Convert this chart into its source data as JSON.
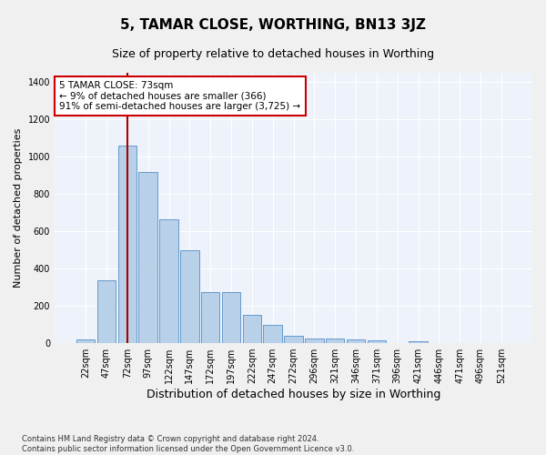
{
  "title": "5, TAMAR CLOSE, WORTHING, BN13 3JZ",
  "subtitle": "Size of property relative to detached houses in Worthing",
  "xlabel": "Distribution of detached houses by size in Worthing",
  "ylabel": "Number of detached properties",
  "categories": [
    "22sqm",
    "47sqm",
    "72sqm",
    "97sqm",
    "122sqm",
    "147sqm",
    "172sqm",
    "197sqm",
    "222sqm",
    "247sqm",
    "272sqm",
    "296sqm",
    "321sqm",
    "346sqm",
    "371sqm",
    "396sqm",
    "421sqm",
    "446sqm",
    "471sqm",
    "496sqm",
    "521sqm"
  ],
  "values": [
    22,
    335,
    1060,
    920,
    665,
    500,
    275,
    275,
    150,
    100,
    38,
    23,
    23,
    20,
    14,
    0,
    12,
    0,
    0,
    0,
    0
  ],
  "bar_color": "#b8d0e8",
  "bar_edge_color": "#6699cc",
  "vline_x": 2.0,
  "vline_color": "#aa0000",
  "annotation_text_line1": "5 TAMAR CLOSE: 73sqm",
  "annotation_text_line2": "← 9% of detached houses are smaller (366)",
  "annotation_text_line3": "91% of semi-detached houses are larger (3,725) →",
  "annotation_box_color": "#ffffff",
  "annotation_box_edge_color": "#cc0000",
  "footer": "Contains HM Land Registry data © Crown copyright and database right 2024.\nContains public sector information licensed under the Open Government Licence v3.0.",
  "ylim": [
    0,
    1450
  ],
  "bg_color": "#eef2fa",
  "grid_color": "#ffffff",
  "title_fontsize": 11,
  "subtitle_fontsize": 9,
  "tick_fontsize": 7,
  "ylabel_fontsize": 8,
  "xlabel_fontsize": 9,
  "footer_fontsize": 6
}
